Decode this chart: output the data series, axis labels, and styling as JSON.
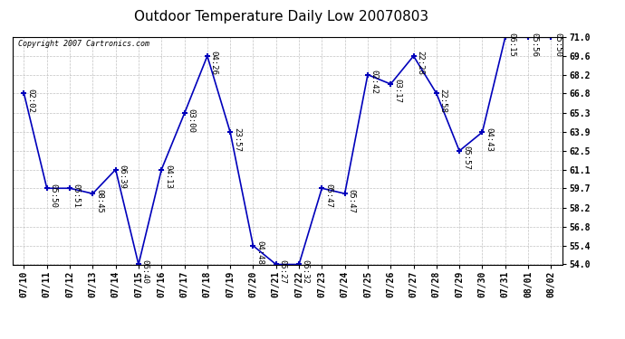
{
  "title": "Outdoor Temperature Daily Low 20070803",
  "copyright": "Copyright 2007 Cartronics.com",
  "background_color": "#ffffff",
  "plot_bg_color": "#ffffff",
  "line_color": "#0000bb",
  "marker_color": "#0000bb",
  "grid_color": "#bbbbbb",
  "ylim": [
    54.0,
    71.0
  ],
  "yticks": [
    54.0,
    55.4,
    56.8,
    58.2,
    59.7,
    61.1,
    62.5,
    63.9,
    65.3,
    66.8,
    68.2,
    69.6,
    71.0
  ],
  "dates": [
    "07/10",
    "07/11",
    "07/12",
    "07/13",
    "07/14",
    "07/15",
    "07/16",
    "07/17",
    "07/18",
    "07/19",
    "07/20",
    "07/21",
    "07/22",
    "07/23",
    "07/24",
    "07/25",
    "07/26",
    "07/27",
    "07/28",
    "07/29",
    "07/30",
    "07/31",
    "08/01",
    "08/02"
  ],
  "values": [
    66.8,
    59.7,
    59.7,
    59.3,
    61.1,
    54.0,
    61.1,
    65.3,
    69.6,
    63.9,
    55.4,
    54.0,
    54.0,
    59.7,
    59.3,
    68.2,
    67.5,
    69.6,
    66.8,
    62.5,
    63.9,
    71.0,
    71.0,
    71.0
  ],
  "labels": [
    "02:02",
    "05:50",
    "05:51",
    "08:45",
    "06:39",
    "06:40",
    "04:13",
    "03:00",
    "04:26",
    "23:57",
    "04:48",
    "05:27",
    "05:32",
    "05:47",
    "05:47",
    "02:42",
    "03:17",
    "22:28",
    "22:58",
    "05:57",
    "04:43",
    "06:15",
    "05:56",
    "05:50"
  ],
  "title_fontsize": 11,
  "tick_fontsize": 7,
  "label_fontsize": 6.5,
  "copyright_fontsize": 6
}
